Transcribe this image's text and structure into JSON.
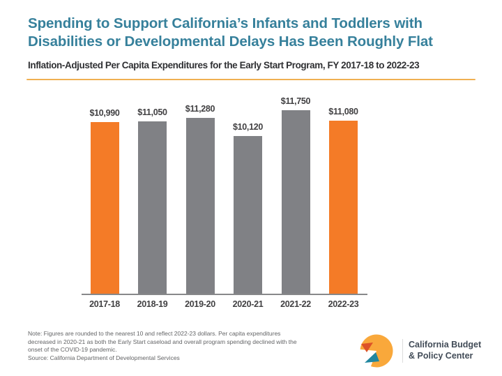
{
  "chart_data": {
    "type": "bar",
    "title_line1": "Spending to Support California’s Infants and Toddlers with",
    "title_line2": "Disabilities or Developmental Delays Has Been Roughly Flat",
    "subtitle": "Inflation-Adjusted Per Capita Expenditures for the Early Start Program, FY 2017-18 to 2022-23",
    "categories": [
      "2017-18",
      "2018-19",
      "2019-20",
      "2020-21",
      "2021-22",
      "2022-23"
    ],
    "values": [
      10990,
      11050,
      11280,
      10120,
      11750,
      11080
    ],
    "value_labels": [
      "$10,990",
      "$11,050",
      "$11,280",
      "$10,120",
      "$11,750",
      "$11,080"
    ],
    "bar_colors": [
      "#F47B27",
      "#808185",
      "#808185",
      "#808185",
      "#808185",
      "#F47B27"
    ],
    "highlight_color": "#F47B27",
    "default_color": "#808185",
    "ylim": [
      0,
      11750
    ],
    "xlabel": "",
    "ylabel": "",
    "grid": false,
    "legend": false,
    "y_axis_shown": false
  },
  "footer": {
    "note_line1": "Note: Figures are rounded to the nearest 10 and reflect 2022-23 dollars. Per capita expenditures",
    "note_line2": "decreased in 2020-21 as both the Early Start caseload and overall program spending declined with the",
    "note_line3": "onset of the COVID-19 pandemic.",
    "source": "Source: California Department of Developmental Services",
    "logo": {
      "org_line1": "California Budget",
      "org_line2": "& Policy Center"
    }
  },
  "colors": {
    "title_teal": "#36809B",
    "subtitle_text": "#2F3033",
    "divider_amber": "#F0B052",
    "bar_orange": "#F47B27",
    "bar_gray": "#808185",
    "axis_gray": "#87888A",
    "bar_label_text": "#414042",
    "note_text": "#636466",
    "logo_text": "#414B57",
    "logo_yellow": "#F9A83B",
    "logo_red": "#DD5227",
    "logo_teal": "#20869F"
  }
}
